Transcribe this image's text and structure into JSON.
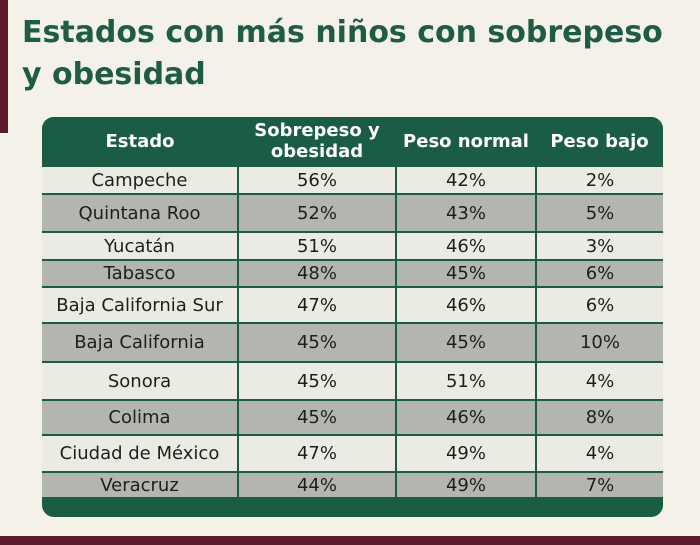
{
  "title": "Estados con más niños con sobrepeso y obesidad",
  "table": {
    "headers": [
      "Estado",
      "Sobrepeso y obesidad",
      "Peso normal",
      "Peso bajo"
    ],
    "rows": [
      [
        "Campeche",
        "56%",
        "42%",
        "2%"
      ],
      [
        "Quintana Roo",
        "52%",
        "43%",
        "5%"
      ],
      [
        "Yucatán",
        "51%",
        "46%",
        "3%"
      ],
      [
        "Tabasco",
        "48%",
        "45%",
        "6%"
      ],
      [
        "Baja California Sur",
        "47%",
        "46%",
        "6%"
      ],
      [
        "Baja California",
        "45%",
        "45%",
        "10%"
      ],
      [
        "Sonora",
        "45%",
        "51%",
        "4%"
      ],
      [
        "Colima",
        "45%",
        "46%",
        "8%"
      ],
      [
        "Ciudad de México",
        "47%",
        "49%",
        "4%"
      ],
      [
        "Veracruz",
        "44%",
        "49%",
        "7%"
      ]
    ]
  },
  "colors": {
    "header_green": "#1b5c45",
    "title_green": "#1e5c45",
    "accent_maroon": "#5a1b2c",
    "row_light": "#ecebe3",
    "row_dark": "#b3b6ae"
  }
}
